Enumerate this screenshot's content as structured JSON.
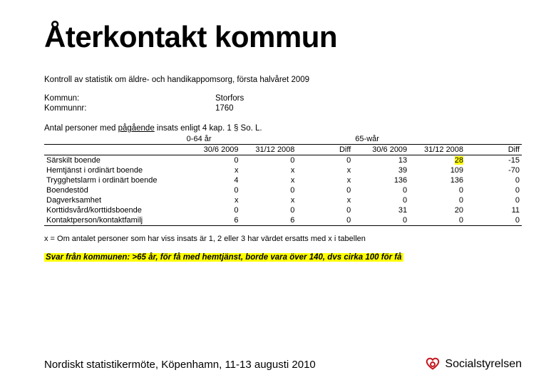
{
  "colors": {
    "highlight": "#ffff00",
    "text": "#000000",
    "bg": "#ffffff",
    "logo": "#c4181f"
  },
  "title": "Återkontakt kommun",
  "subtitle": "Kontroll av statistik om äldre- och handikappomsorg, första halvåret 2009",
  "info": {
    "kommun_label": "Kommun:",
    "kommun_value": "Storfors",
    "kommunnr_label": "Kommunnr:",
    "kommunnr_value": "1760"
  },
  "section_label_pre": "Antal personer med ",
  "section_label_u": "pågående",
  "section_label_post": " insats enligt 4 kap. 1 § So. L.",
  "table": {
    "group1": "0-64 år",
    "group2": "65-wår",
    "col1": "30/6 2009",
    "col2": "31/12 2008",
    "col3": "Diff",
    "col4": "30/6 2009",
    "col5": "31/12 2008",
    "col6": "Diff",
    "rows": [
      {
        "label": "Särskilt boende",
        "c1": "0",
        "c2": "0",
        "c3": "0",
        "c4": "13",
        "c5": "28",
        "c5_hl": true,
        "c6": "-15"
      },
      {
        "label": "Hemtjänst i ordinärt boende",
        "c1": "x",
        "c2": "x",
        "c3": "x",
        "c4": "39",
        "c5": "109",
        "c6": "-70"
      },
      {
        "label": "Trygghetslarm i ordinärt boende",
        "c1": "4",
        "c2": "x",
        "c3": "x",
        "c4": "136",
        "c5": "136",
        "c6": "0"
      },
      {
        "label": "Boendestöd",
        "c1": "0",
        "c2": "0",
        "c3": "0",
        "c4": "0",
        "c5": "0",
        "c6": "0"
      },
      {
        "label": "Dagverksamhet",
        "c1": "x",
        "c2": "x",
        "c3": "x",
        "c4": "0",
        "c5": "0",
        "c6": "0"
      },
      {
        "label": "Korttidsvård/korttidsboende",
        "c1": "0",
        "c2": "0",
        "c3": "0",
        "c4": "31",
        "c5": "20",
        "c6": "11"
      },
      {
        "label": "Kontaktperson/kontaktfamilj",
        "c1": "6",
        "c2": "6",
        "c3": "0",
        "c4": "0",
        "c5": "0",
        "c6": "0"
      }
    ]
  },
  "footnote": "x = Om antalet personer som har viss insats är 1, 2 eller 3 har värdet ersatts med x i tabellen",
  "response_label": "Svar från kommunen: ",
  "response_text": ">65 år, för få med hemtjänst, borde vara över 140, dvs cirka 100 för få",
  "footer": "Nordiskt statistikermöte, Köpenhamn, 11-13 augusti 2010",
  "logo_text": "Socialstyrelsen"
}
